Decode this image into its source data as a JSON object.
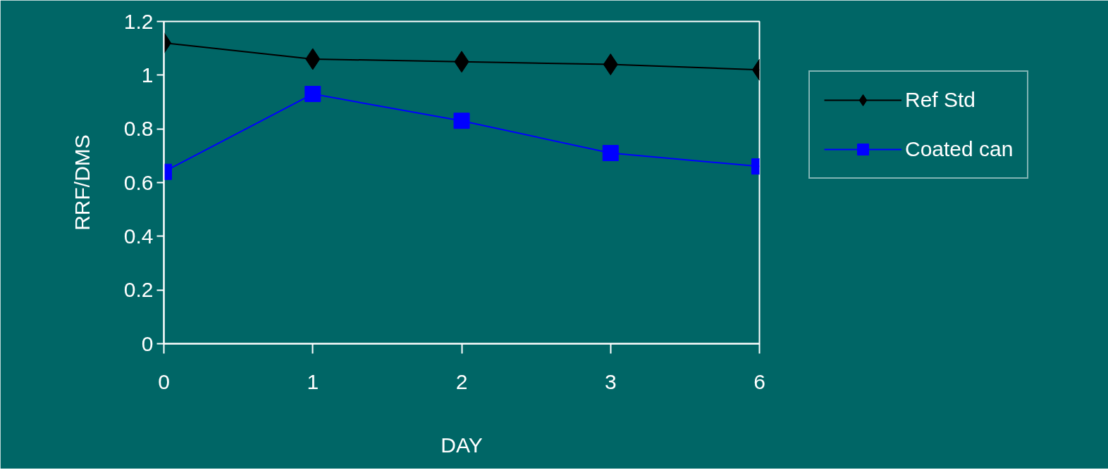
{
  "chart_data": {
    "type": "line",
    "xlabel": "DAY",
    "ylabel": "RRF/DMS",
    "categories": [
      "0",
      "1",
      "2",
      "3",
      "6"
    ],
    "series": [
      {
        "name": "Ref Std",
        "color": "#000000",
        "marker": "diamond",
        "values": [
          1.12,
          1.06,
          1.05,
          1.04,
          1.02
        ]
      },
      {
        "name": "Coated can",
        "color": "#0000ff",
        "marker": "square",
        "values": [
          0.64,
          0.93,
          0.83,
          0.71,
          0.66
        ]
      }
    ],
    "ylim": [
      0,
      1.2
    ],
    "yticks": [
      0,
      0.2,
      0.4,
      0.6,
      0.8,
      1,
      1.2
    ],
    "grid": false,
    "legend": "right",
    "line_style": "solid"
  }
}
